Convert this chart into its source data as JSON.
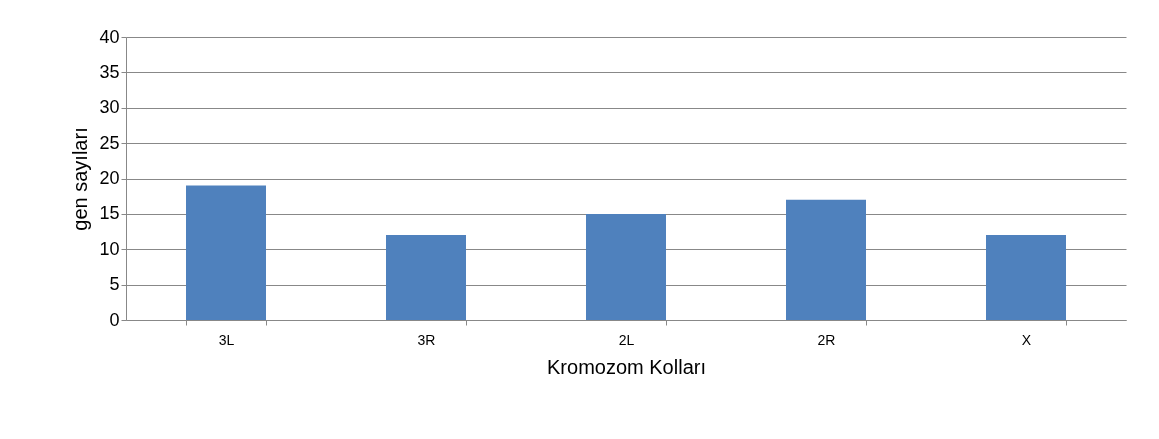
{
  "chart_data": {
    "type": "bar",
    "xlabel": "Kromozom Kolları",
    "ylabel": "gen sayıları",
    "categories": [
      "3L",
      "3R",
      "2L",
      "2R",
      "X"
    ],
    "values": [
      19,
      12,
      15,
      17,
      12
    ],
    "color": "#4f81bd",
    "ylim": [
      0,
      40
    ],
    "yticks": [
      0,
      5,
      10,
      15,
      20,
      25,
      30,
      35,
      40
    ],
    "grid": "y"
  }
}
